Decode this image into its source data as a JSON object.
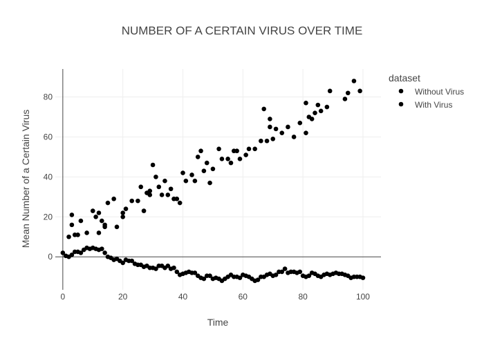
{
  "chart_data": {
    "type": "scatter",
    "title": "NUMBER OF A CERTAIN VIRUS OVER TIME",
    "xlabel": "Time",
    "ylabel": "Mean Number of a Certain Virus",
    "xlim": [
      -2.5,
      106
    ],
    "ylim": [
      -16.5,
      94
    ],
    "x_ticks": [
      0,
      20,
      40,
      60,
      80,
      100
    ],
    "y_ticks": [
      0,
      20,
      40,
      60,
      80
    ],
    "grid": true,
    "legend": {
      "title": "dataset",
      "placement": "right"
    },
    "series": [
      {
        "name": "Without Virus",
        "color": "#000000",
        "points": [
          [
            2,
            10
          ],
          [
            3,
            21
          ],
          [
            3,
            16
          ],
          [
            4,
            11
          ],
          [
            5,
            11
          ],
          [
            6,
            18
          ],
          [
            8,
            12
          ],
          [
            10,
            23
          ],
          [
            11,
            20
          ],
          [
            12,
            12
          ],
          [
            12,
            22
          ],
          [
            13,
            18
          ],
          [
            14,
            15
          ],
          [
            14,
            16
          ],
          [
            15,
            27
          ],
          [
            17,
            29
          ],
          [
            18,
            15
          ],
          [
            20,
            20
          ],
          [
            20,
            22
          ],
          [
            21,
            24
          ],
          [
            23,
            28
          ],
          [
            25,
            28
          ],
          [
            26,
            35
          ],
          [
            27,
            23
          ],
          [
            28,
            32
          ],
          [
            29,
            33
          ],
          [
            29,
            31
          ],
          [
            30,
            46
          ],
          [
            31,
            40
          ],
          [
            32,
            35
          ],
          [
            33,
            31
          ],
          [
            34,
            38
          ],
          [
            35,
            31
          ],
          [
            36,
            34
          ],
          [
            37,
            29
          ],
          [
            38,
            29
          ],
          [
            39,
            27
          ],
          [
            40,
            42
          ],
          [
            41,
            38
          ],
          [
            43,
            41
          ],
          [
            44,
            38
          ],
          [
            45,
            50
          ],
          [
            46,
            53
          ],
          [
            47,
            43
          ],
          [
            48,
            47
          ],
          [
            49,
            37
          ],
          [
            50,
            44
          ],
          [
            52,
            54
          ],
          [
            53,
            49
          ],
          [
            55,
            49
          ],
          [
            56,
            47
          ],
          [
            57,
            53
          ],
          [
            58,
            53
          ],
          [
            59,
            49
          ],
          [
            61,
            51
          ],
          [
            62,
            54
          ],
          [
            64,
            54
          ],
          [
            66,
            58
          ],
          [
            67,
            74
          ],
          [
            68,
            58
          ],
          [
            69,
            69
          ],
          [
            69,
            65
          ],
          [
            70,
            59
          ],
          [
            71,
            64
          ],
          [
            73,
            62
          ],
          [
            75,
            65
          ],
          [
            77,
            60
          ],
          [
            79,
            67
          ],
          [
            81,
            77
          ],
          [
            81,
            62
          ],
          [
            82,
            70
          ],
          [
            83,
            69
          ],
          [
            84,
            72
          ],
          [
            85,
            76
          ],
          [
            86,
            73
          ],
          [
            88,
            75
          ],
          [
            89,
            83
          ],
          [
            94,
            79
          ],
          [
            95,
            82
          ],
          [
            97,
            88
          ],
          [
            99,
            83
          ]
        ]
      },
      {
        "name": "With Virus",
        "color": "#000000",
        "points": [
          [
            0,
            2
          ],
          [
            1,
            0.5
          ],
          [
            2,
            0
          ],
          [
            3,
            1
          ],
          [
            4,
            2.5
          ],
          [
            5,
            2.5
          ],
          [
            6,
            2
          ],
          [
            7,
            3.5
          ],
          [
            8,
            4.5
          ],
          [
            9,
            4
          ],
          [
            10,
            4.5
          ],
          [
            11,
            4
          ],
          [
            12,
            3.5
          ],
          [
            13,
            4
          ],
          [
            14,
            2
          ],
          [
            15,
            0
          ],
          [
            16,
            -0.5
          ],
          [
            17,
            -1.5
          ],
          [
            18,
            -1
          ],
          [
            19,
            -2
          ],
          [
            20,
            -3
          ],
          [
            21,
            -1.5
          ],
          [
            22,
            -2
          ],
          [
            23,
            -2
          ],
          [
            24,
            -3.5
          ],
          [
            25,
            -4
          ],
          [
            26,
            -4
          ],
          [
            27,
            -5
          ],
          [
            28,
            -4.5
          ],
          [
            29,
            -5.5
          ],
          [
            30,
            -5.5
          ],
          [
            31,
            -6
          ],
          [
            32,
            -4.5
          ],
          [
            33,
            -4.5
          ],
          [
            34,
            -5.5
          ],
          [
            35,
            -4.5
          ],
          [
            36,
            -6
          ],
          [
            37,
            -5.5
          ],
          [
            38,
            -7.5
          ],
          [
            39,
            -9
          ],
          [
            40,
            -8.5
          ],
          [
            41,
            -8
          ],
          [
            42,
            -7.5
          ],
          [
            43,
            -8
          ],
          [
            44,
            -8
          ],
          [
            45,
            -9.5
          ],
          [
            46,
            -10.5
          ],
          [
            47,
            -11
          ],
          [
            48,
            -9.5
          ],
          [
            49,
            -9.5
          ],
          [
            50,
            -11
          ],
          [
            51,
            -10.5
          ],
          [
            52,
            -11
          ],
          [
            53,
            -12
          ],
          [
            54,
            -11
          ],
          [
            55,
            -10
          ],
          [
            56,
            -9
          ],
          [
            57,
            -10
          ],
          [
            58,
            -10
          ],
          [
            59,
            -10.5
          ],
          [
            60,
            -9
          ],
          [
            61,
            -9.5
          ],
          [
            62,
            -10
          ],
          [
            63,
            -11
          ],
          [
            64,
            -12
          ],
          [
            65,
            -11.5
          ],
          [
            66,
            -10
          ],
          [
            67,
            -10
          ],
          [
            68,
            -9
          ],
          [
            69,
            -8.5
          ],
          [
            70,
            -9.5
          ],
          [
            71,
            -9
          ],
          [
            72,
            -7.5
          ],
          [
            73,
            -7.5
          ],
          [
            74,
            -6
          ],
          [
            75,
            -8
          ],
          [
            76,
            -7.5
          ],
          [
            77,
            -7.5
          ],
          [
            78,
            -8
          ],
          [
            79,
            -7.5
          ],
          [
            80,
            -9.5
          ],
          [
            81,
            -10
          ],
          [
            82,
            -9.5
          ],
          [
            83,
            -8
          ],
          [
            84,
            -8.5
          ],
          [
            85,
            -9.5
          ],
          [
            86,
            -10
          ],
          [
            87,
            -9
          ],
          [
            88,
            -8.5
          ],
          [
            89,
            -9
          ],
          [
            90,
            -8.5
          ],
          [
            91,
            -8
          ],
          [
            92,
            -8.5
          ],
          [
            93,
            -8.5
          ],
          [
            94,
            -9
          ],
          [
            95,
            -9.5
          ],
          [
            96,
            -10.5
          ],
          [
            97,
            -10
          ],
          [
            98,
            -10
          ],
          [
            99,
            -10
          ],
          [
            100,
            -10.5
          ]
        ]
      }
    ]
  }
}
